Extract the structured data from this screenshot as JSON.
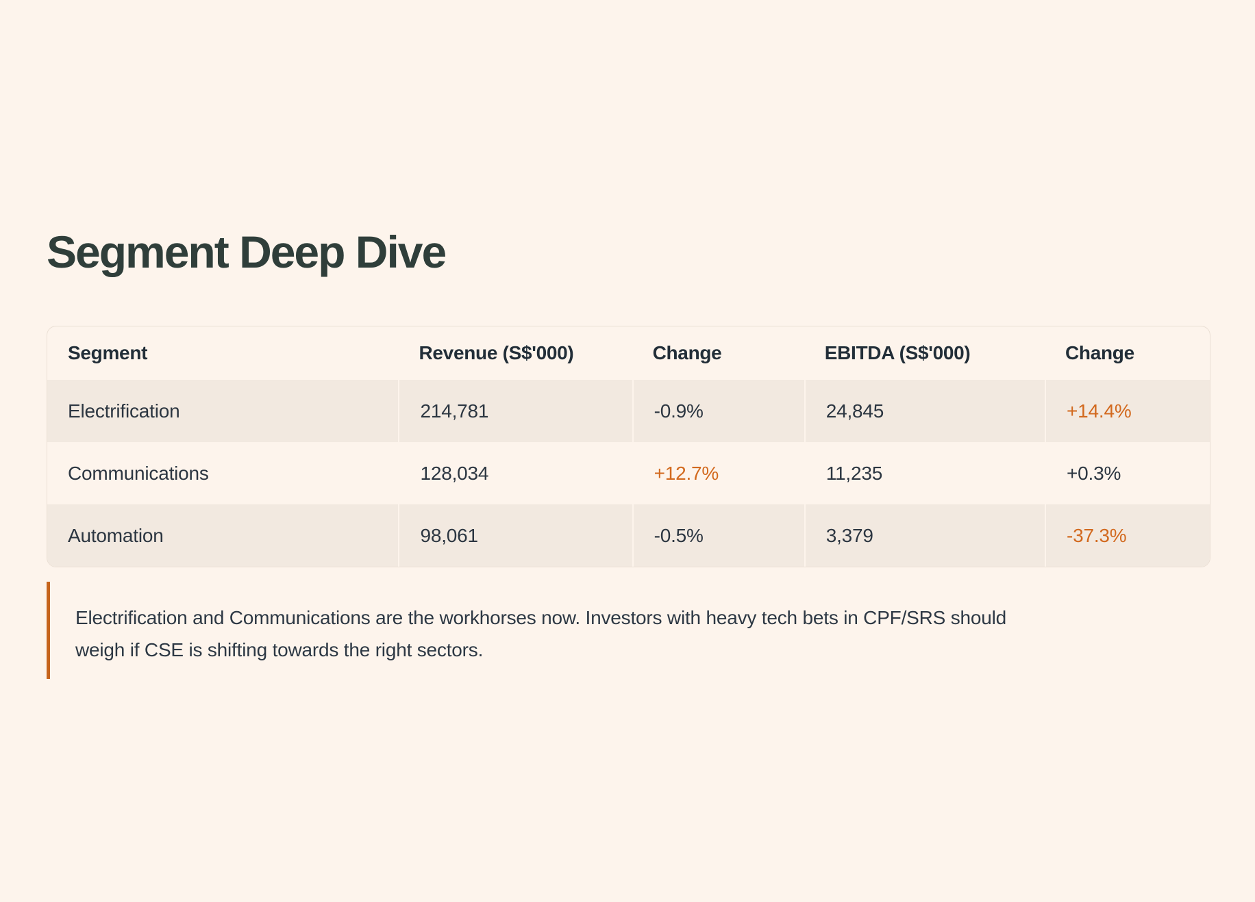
{
  "page": {
    "title": "Segment Deep Dive",
    "background": "#fdf4ec",
    "title_color": "#2f3e3a"
  },
  "colors": {
    "accent_orange": "#d2691e",
    "note_bar_orange": "#c6641c",
    "row_tint": "#f2e9e0",
    "table_border": "#eadfd4",
    "text_dark": "#2c3641"
  },
  "table": {
    "columns": [
      "Segment",
      "Revenue (S$'000)",
      "Change",
      "EBITDA (S$'000)",
      "Change"
    ],
    "rows": [
      {
        "cells": [
          {
            "text": "Electrification",
            "accent": false
          },
          {
            "text": "214,781",
            "accent": false
          },
          {
            "text": "-0.9%",
            "accent": false
          },
          {
            "text": "24,845",
            "accent": false
          },
          {
            "text": "+14.4%",
            "accent": true
          }
        ]
      },
      {
        "cells": [
          {
            "text": "Communications",
            "accent": false
          },
          {
            "text": "128,034",
            "accent": false
          },
          {
            "text": "+12.7%",
            "accent": true
          },
          {
            "text": "11,235",
            "accent": false
          },
          {
            "text": "+0.3%",
            "accent": false
          }
        ]
      },
      {
        "cells": [
          {
            "text": "Automation",
            "accent": false
          },
          {
            "text": "98,061",
            "accent": false
          },
          {
            "text": "-0.5%",
            "accent": false
          },
          {
            "text": "3,379",
            "accent": false
          },
          {
            "text": "-37.3%",
            "accent": true
          }
        ]
      }
    ]
  },
  "note": {
    "lines": [
      "Electrification and Communications are the workhorses now. Investors with heavy tech bets in CPF/SRS should",
      "weigh if CSE is shifting towards the right sectors."
    ]
  }
}
